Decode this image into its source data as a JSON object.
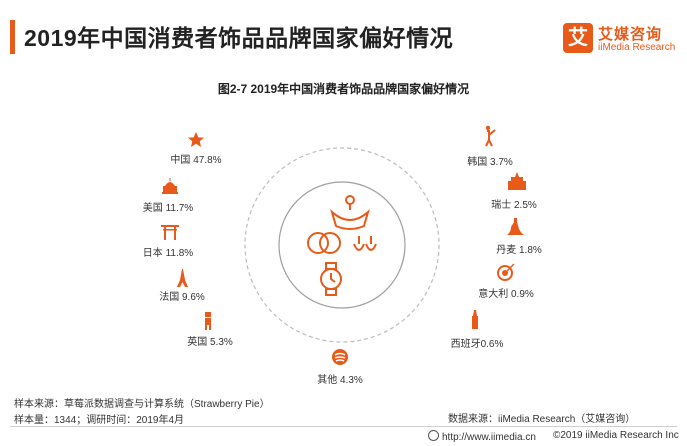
{
  "header": {
    "title": "2019年中国消费者饰品品牌国家偏好情况"
  },
  "logo": {
    "glyph": "艾",
    "cn": "艾媒咨询",
    "en": "iiMedia Research"
  },
  "colors": {
    "accent": "#e85a19",
    "ring": "#bdbdbd"
  },
  "chart_data": {
    "type": "icon-ring",
    "title": "图2-7 2019年中国消费者饰品品牌国家偏好情况",
    "items": [
      {
        "label": "中国 47.8%",
        "category": "中国",
        "value": 47.8,
        "icon": "star-icon"
      },
      {
        "label": "美国 11.7%",
        "category": "美国",
        "value": 11.7,
        "icon": "capitol-icon"
      },
      {
        "label": "日本 11.8%",
        "category": "日本",
        "value": 11.8,
        "icon": "torii-icon"
      },
      {
        "label": "法国 9.6%",
        "category": "法国",
        "value": 9.6,
        "icon": "eiffel-tower-icon"
      },
      {
        "label": "英国 5.3%",
        "category": "英国",
        "value": 5.3,
        "icon": "guard-icon"
      },
      {
        "label": "其他 4.3%",
        "category": "其他",
        "value": 4.3,
        "icon": "globe-icon"
      },
      {
        "label": "西班牙0.6%",
        "category": "西班牙",
        "value": 0.6,
        "icon": "tower-icon"
      },
      {
        "label": "意大利 0.9%",
        "category": "意大利",
        "value": 0.9,
        "icon": "target-icon"
      },
      {
        "label": "丹麦 1.8%",
        "category": "丹麦",
        "value": 1.8,
        "icon": "mermaid-icon"
      },
      {
        "label": "瑞士 2.5%",
        "category": "瑞士",
        "value": 2.5,
        "icon": "building-icon"
      },
      {
        "label": "韩国 3.7%",
        "category": "韩国",
        "value": 3.7,
        "icon": "figure-icon"
      }
    ]
  },
  "footer": {
    "source": "样本来源：草莓派数据调查与计算系统（Strawberry Pie）",
    "sample": "样本量：1344；调研时间：2019年4月",
    "data_source": "数据来源：iiMedia Research（艾媒咨询）",
    "url": "http://www.iimedia.cn",
    "copyright": "©2019 iiMedia Research Inc"
  }
}
